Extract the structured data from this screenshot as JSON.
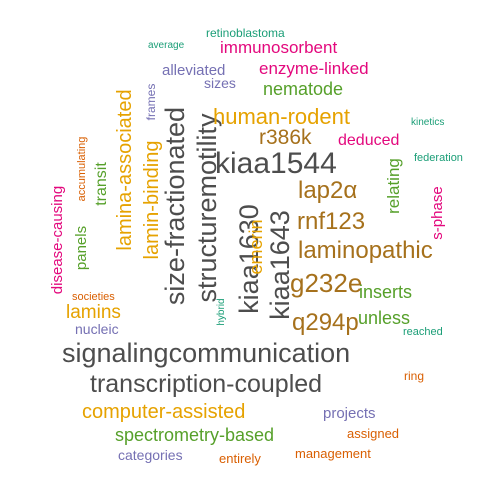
{
  "colors": {
    "gray": "#4d4d4d",
    "gold": "#e6a200",
    "brown": "#a6711c",
    "green": "#56a02a",
    "magenta": "#e3087d",
    "teal": "#1b9e77",
    "purple": "#7570b3",
    "orange": "#d95f02"
  },
  "words": [
    {
      "text": "signalingcommunication",
      "color": "gray"
    },
    {
      "text": "transcription-coupled",
      "color": "gray"
    },
    {
      "text": "size-fractionated",
      "color": "gray"
    },
    {
      "text": "structuremotility",
      "color": "gray"
    },
    {
      "text": "kiaa1544",
      "color": "gray"
    },
    {
      "text": "kiaa1630",
      "color": "gray"
    },
    {
      "text": "kiaa1643",
      "color": "gray"
    },
    {
      "text": "laminopathic",
      "color": "brown"
    },
    {
      "text": "g232e",
      "color": "brown"
    },
    {
      "text": "q294p",
      "color": "brown"
    },
    {
      "text": "rnf123",
      "color": "brown"
    },
    {
      "text": "lap2α",
      "color": "brown"
    },
    {
      "text": "r386k",
      "color": "brown"
    },
    {
      "text": "human-rodent",
      "color": "gold"
    },
    {
      "text": "lamina-associated",
      "color": "gold"
    },
    {
      "text": "lamin-binding",
      "color": "gold"
    },
    {
      "text": "emerin",
      "color": "gold"
    },
    {
      "text": "computer-assisted",
      "color": "gold"
    },
    {
      "text": "lamins",
      "color": "gold"
    },
    {
      "text": "nematode",
      "color": "green"
    },
    {
      "text": "spectrometry-based",
      "color": "green"
    },
    {
      "text": "inserts",
      "color": "green"
    },
    {
      "text": "unless",
      "color": "green"
    },
    {
      "text": "relating",
      "color": "green"
    },
    {
      "text": "transit",
      "color": "green"
    },
    {
      "text": "panels",
      "color": "green"
    },
    {
      "text": "immunosorbent",
      "color": "magenta"
    },
    {
      "text": "enzyme-linked",
      "color": "magenta"
    },
    {
      "text": "deduced",
      "color": "magenta"
    },
    {
      "text": "disease-causing",
      "color": "magenta"
    },
    {
      "text": "s-phase",
      "color": "magenta"
    },
    {
      "text": "alleviated",
      "color": "purple"
    },
    {
      "text": "sizes",
      "color": "purple"
    },
    {
      "text": "frames",
      "color": "purple"
    },
    {
      "text": "nucleic",
      "color": "purple"
    },
    {
      "text": "projects",
      "color": "purple"
    },
    {
      "text": "categories",
      "color": "purple"
    },
    {
      "text": "retinoblastoma",
      "color": "teal"
    },
    {
      "text": "average",
      "color": "teal"
    },
    {
      "text": "kinetics",
      "color": "teal"
    },
    {
      "text": "federation",
      "color": "teal"
    },
    {
      "text": "hybrid",
      "color": "teal"
    },
    {
      "text": "reached",
      "color": "teal"
    },
    {
      "text": "accumulating",
      "color": "orange"
    },
    {
      "text": "societies",
      "color": "orange"
    },
    {
      "text": "ring",
      "color": "orange"
    },
    {
      "text": "assigned",
      "color": "orange"
    },
    {
      "text": "management",
      "color": "orange"
    },
    {
      "text": "entirely",
      "color": "orange"
    }
  ]
}
